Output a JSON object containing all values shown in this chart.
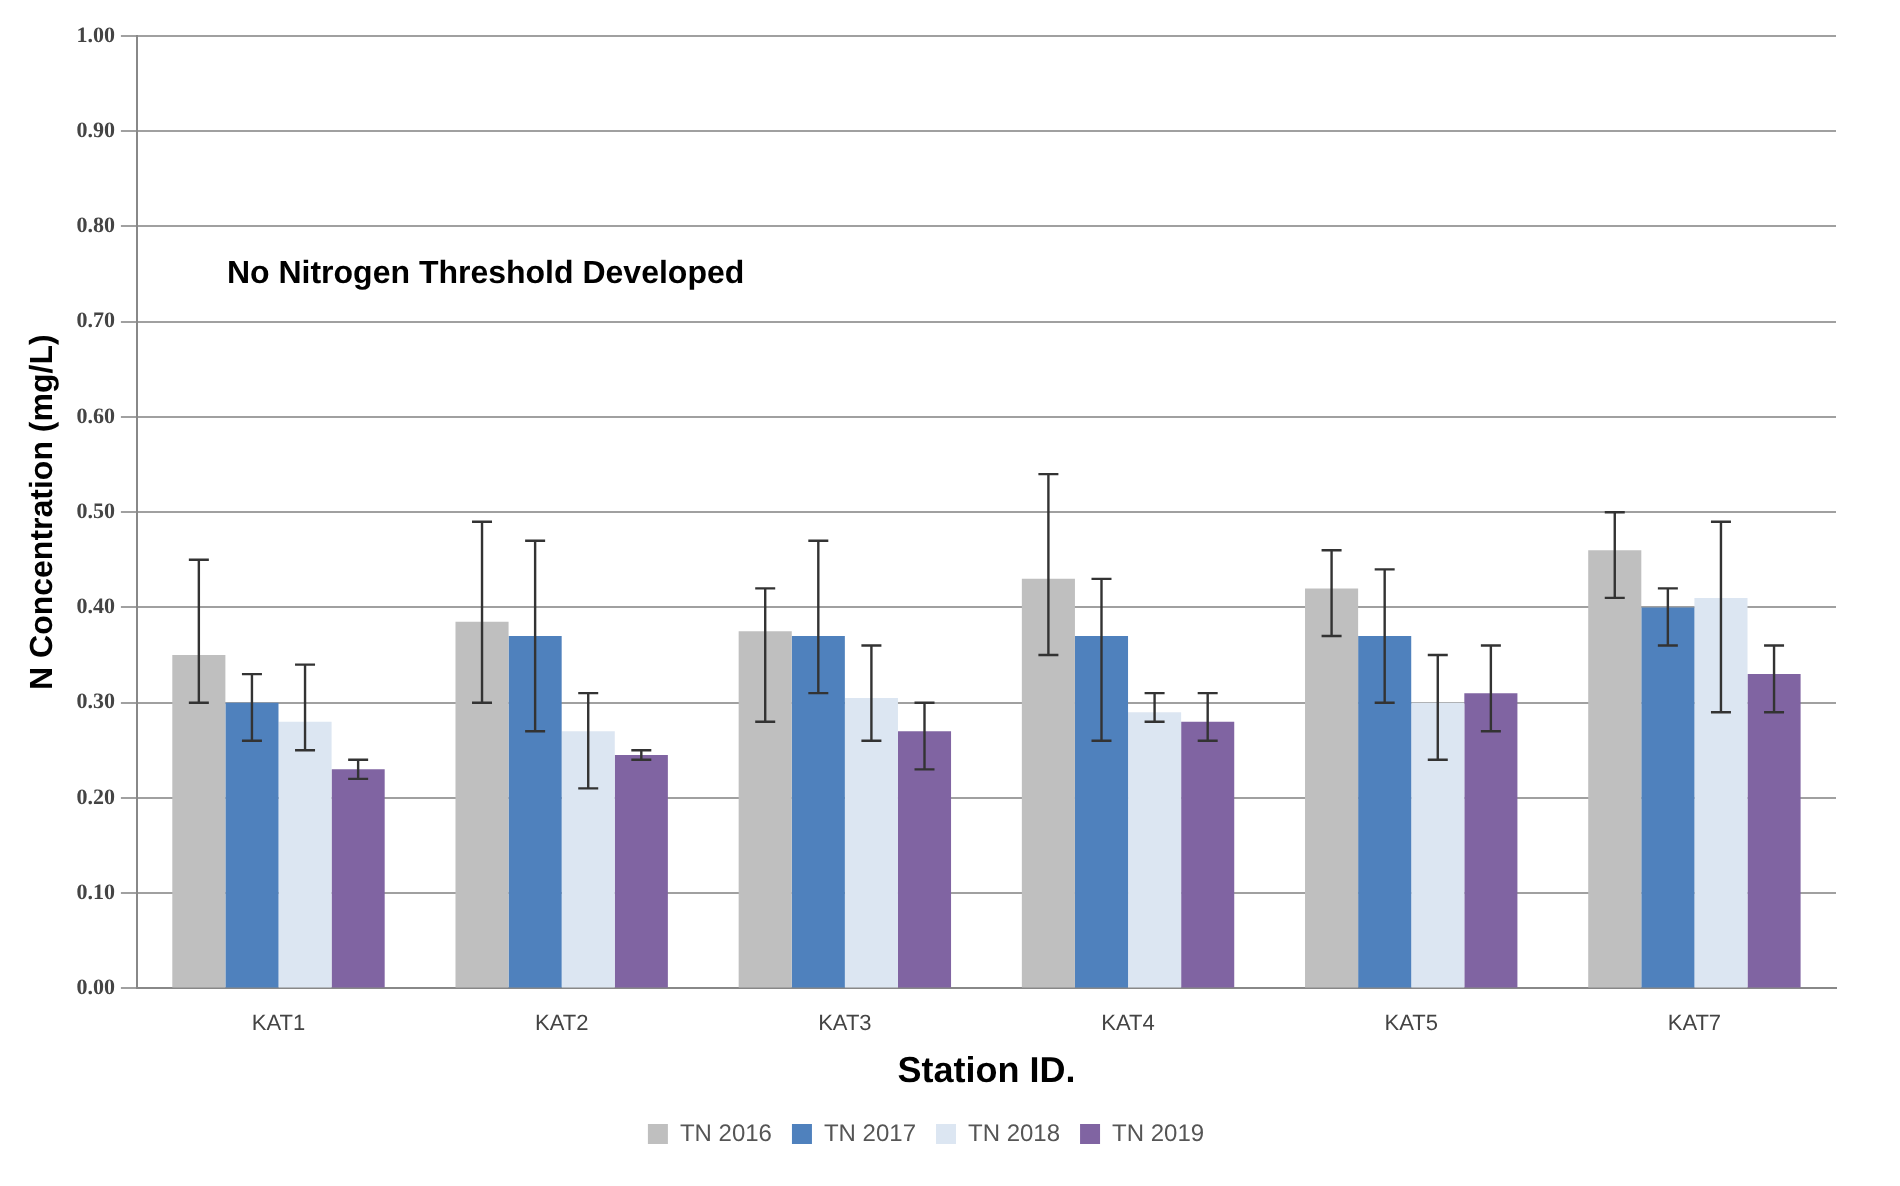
{
  "chart_data": {
    "type": "bar",
    "xlabel": "Station ID.",
    "ylabel": "N Concentration (mg/L)",
    "categories": [
      "KAT1",
      "KAT2",
      "KAT3",
      "KAT4",
      "KAT5",
      "KAT7"
    ],
    "series": [
      {
        "name": "TN 2016",
        "color": "#bfbfbf",
        "values": [
          0.35,
          0.385,
          0.375,
          0.43,
          0.42,
          0.46
        ],
        "errors": [
          [
            0.3,
            0.45
          ],
          [
            0.3,
            0.49
          ],
          [
            0.28,
            0.42
          ],
          [
            0.35,
            0.54
          ],
          [
            0.37,
            0.46
          ],
          [
            0.41,
            0.5
          ]
        ]
      },
      {
        "name": "TN 2017",
        "color": "#4f81bd",
        "values": [
          0.3,
          0.37,
          0.37,
          0.37,
          0.37,
          0.4
        ],
        "errors": [
          [
            0.26,
            0.33
          ],
          [
            0.27,
            0.47
          ],
          [
            0.31,
            0.47
          ],
          [
            0.26,
            0.43
          ],
          [
            0.3,
            0.44
          ],
          [
            0.36,
            0.42
          ]
        ]
      },
      {
        "name": "TN 2018",
        "color": "#dce6f2",
        "values": [
          0.28,
          0.27,
          0.305,
          0.29,
          0.3,
          0.41
        ],
        "errors": [
          [
            0.25,
            0.34
          ],
          [
            0.21,
            0.31
          ],
          [
            0.26,
            0.36
          ],
          [
            0.28,
            0.31
          ],
          [
            0.24,
            0.35
          ],
          [
            0.29,
            0.49
          ]
        ]
      },
      {
        "name": "TN 2019",
        "color": "#8064a2",
        "values": [
          0.23,
          0.245,
          0.27,
          0.28,
          0.31,
          0.33
        ],
        "errors": [
          [
            0.22,
            0.24
          ],
          [
            0.24,
            0.25
          ],
          [
            0.23,
            0.3
          ],
          [
            0.26,
            0.31
          ],
          [
            0.27,
            0.36
          ],
          [
            0.29,
            0.36
          ]
        ]
      }
    ],
    "ylim": [
      0,
      1
    ],
    "yticks": [
      {
        "value": 0,
        "label": "0.00"
      },
      {
        "value": 0.1,
        "label": "0.10"
      },
      {
        "value": 0.2,
        "label": "0.20"
      },
      {
        "value": 0.3,
        "label": "0.30"
      },
      {
        "value": 0.4,
        "label": "0.40"
      },
      {
        "value": 0.5,
        "label": "0.50"
      },
      {
        "value": 0.6,
        "label": "0.60"
      },
      {
        "value": 0.7,
        "label": "0.70"
      },
      {
        "value": 0.8,
        "label": "0.80"
      },
      {
        "value": 0.9,
        "label": "0.90"
      },
      {
        "value": 1,
        "label": "1.00"
      }
    ],
    "grid": "y",
    "legend": "bottom",
    "annotations": [
      "No Nitrogen Threshold Developed"
    ]
  }
}
